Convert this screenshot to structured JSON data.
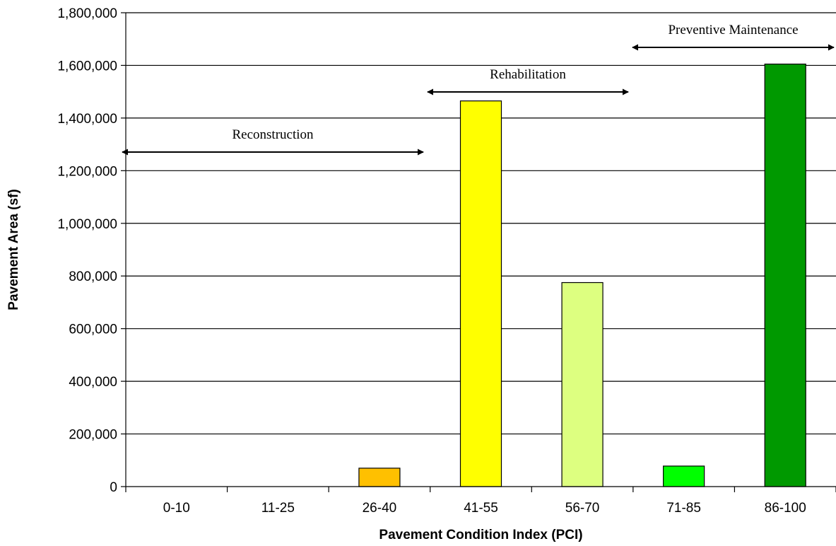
{
  "chart_data": {
    "type": "bar",
    "title": "",
    "xlabel": "Pavement Condition Index (PCI)",
    "ylabel": "Pavement Area (sf)",
    "categories": [
      "0-10",
      "11-25",
      "26-40",
      "41-55",
      "56-70",
      "71-85",
      "86-100"
    ],
    "values": [
      0,
      0,
      70000,
      1465000,
      775000,
      78000,
      1605000
    ],
    "colors": [
      "#ff0000",
      "#ff8000",
      "#ffc000",
      "#ffff00",
      "#ddff80",
      "#00ff00",
      "#009900"
    ],
    "ylim": [
      0,
      1800000
    ],
    "yticks": [
      0,
      200000,
      400000,
      600000,
      800000,
      1000000,
      1200000,
      1400000,
      1600000,
      1800000
    ],
    "ytick_labels": [
      "0",
      "200,000",
      "400,000",
      "600,000",
      "800,000",
      "1,000,000",
      "1,200,000",
      "1,400,000",
      "1,600,000",
      "1,800,000"
    ],
    "grid": true,
    "annotations": [
      {
        "text": "Reconstruction",
        "from_category": 0,
        "to_category": 2
      },
      {
        "text": "Rehabilitation",
        "from_category": 3,
        "to_category": 4
      },
      {
        "text": "Preventive Maintenance",
        "from_category": 5,
        "to_category": 6
      }
    ]
  }
}
